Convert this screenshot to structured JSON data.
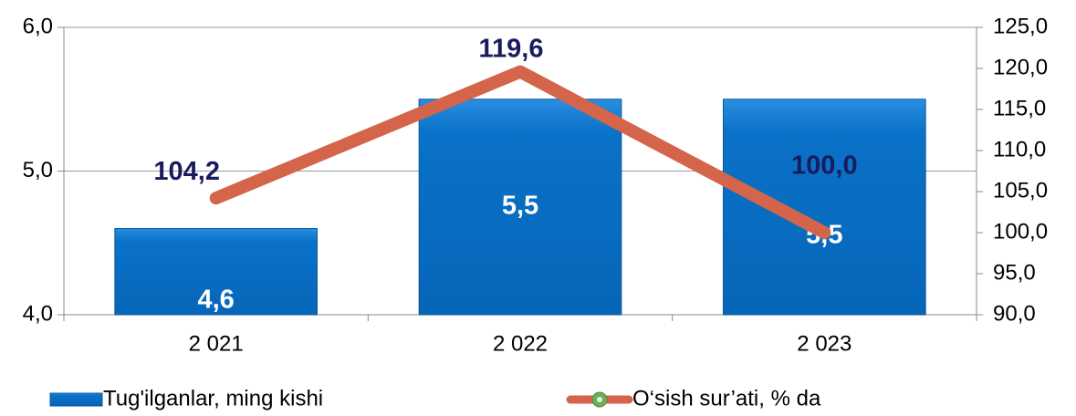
{
  "chart_data": {
    "type": "bar_line",
    "categories": [
      "2 021",
      "2 022",
      "2 023"
    ],
    "series": [
      {
        "name": "Tug'ilganlar, ming kishi",
        "type": "bar",
        "color": "#0a72c8",
        "values": [
          4.6,
          5.5,
          5.5
        ],
        "value_labels": [
          "4,6",
          "5,5",
          "5,5"
        ]
      },
      {
        "name": "O‘sish sur’ati, % da",
        "type": "line",
        "axis": "y2",
        "color": "#d4654a",
        "values": [
          104.2,
          119.6,
          100.0
        ],
        "value_labels": [
          "104,2",
          "119,6",
          "100,0"
        ]
      }
    ],
    "ylim": [
      4.0,
      6.0
    ],
    "yticks": [
      {
        "value": 4.0,
        "label": "4,0"
      },
      {
        "value": 5.0,
        "label": "5,0"
      },
      {
        "value": 6.0,
        "label": "6,0"
      }
    ],
    "y2lim": [
      90.0,
      125.0
    ],
    "y2ticks": [
      {
        "value": 90.0,
        "label": "90,0"
      },
      {
        "value": 95.0,
        "label": "95,0"
      },
      {
        "value": 100.0,
        "label": "100,0"
      },
      {
        "value": 105.0,
        "label": "105,0"
      },
      {
        "value": 110.0,
        "label": "110,0"
      },
      {
        "value": 115.0,
        "label": "115,0"
      },
      {
        "value": 120.0,
        "label": "120,0"
      },
      {
        "value": 125.0,
        "label": "125,0"
      }
    ],
    "grid": true,
    "legend": "bottom"
  }
}
